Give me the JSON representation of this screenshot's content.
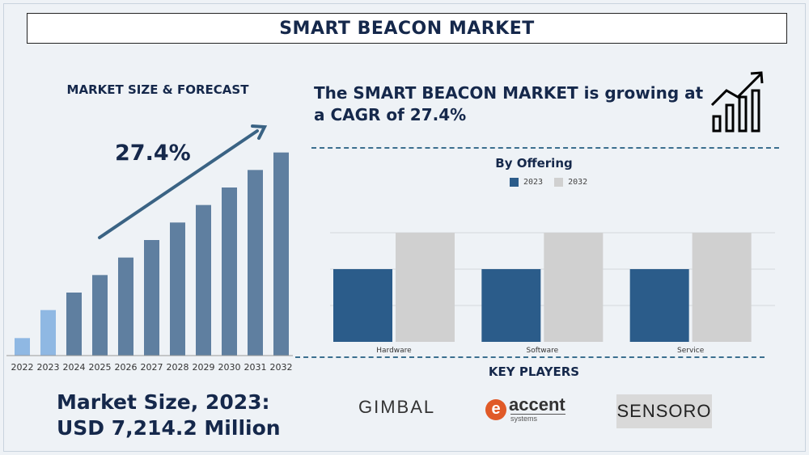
{
  "title": "SMART BEACON MARKET",
  "left_panel": {
    "heading": "MARKET SIZE & FORECAST",
    "cagr_label": "27.4%",
    "market_size_line1": "Market Size, 2023:",
    "market_size_line2": "USD 7,214.2 Million"
  },
  "headline": "The SMART BEACON MARKET is growing at a CAGR of 27.4%",
  "icons": {
    "growth": "growth-chart-icon",
    "arrow": "trend-arrow-icon"
  },
  "colors": {
    "title_text": "#15284b",
    "forecast_bar": "#5f7fa0",
    "forecast_highlight": "#8fb8e3",
    "series_2023": "#2b5c8a",
    "series_2032": "#d0d0d0",
    "accent_orange": "#e05a28"
  },
  "key_players": {
    "heading": "KEY PLAYERS",
    "players": [
      "GIMBAL",
      "accent",
      "SENSORO"
    ],
    "accent_sub": "systems"
  },
  "chart_data": [
    {
      "type": "bar",
      "title": "",
      "categories": [
        "2022",
        "2023",
        "2024",
        "2025",
        "2026",
        "2027",
        "2028",
        "2029",
        "2030",
        "2031",
        "2032"
      ],
      "values": [
        1,
        2.6,
        3.6,
        4.6,
        5.6,
        6.6,
        7.6,
        8.6,
        9.6,
        10.6,
        11.6
      ],
      "highlight": [
        "2022",
        "2023"
      ],
      "ylim": [
        0,
        12
      ]
    },
    {
      "type": "bar",
      "title": "By Offering",
      "categories": [
        "Hardware",
        "Software",
        "Service"
      ],
      "series": [
        {
          "name": "2023",
          "values": [
            2,
            2,
            2
          ]
        },
        {
          "name": "2032",
          "values": [
            3,
            3,
            3
          ]
        }
      ],
      "ylim": [
        0,
        4
      ],
      "grid": true,
      "legend": "top"
    }
  ]
}
